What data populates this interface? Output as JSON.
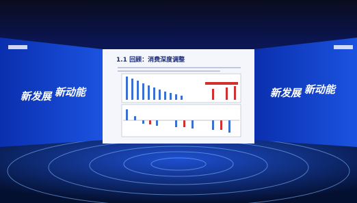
{
  "center_screen": {
    "title": "1.1 回顾：消费深度调整"
  },
  "left_screen": {
    "line1": "新发展",
    "line2": "新动能"
  },
  "right_screen": {
    "line1": "新发展",
    "line2": "新动能"
  }
}
